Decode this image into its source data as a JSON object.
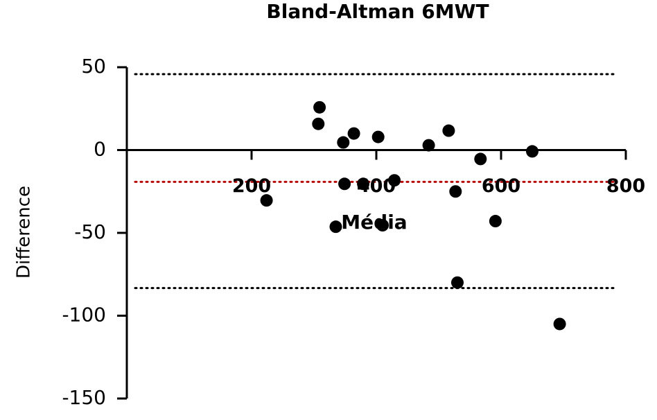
{
  "chart_data": {
    "type": "scatter",
    "title": "Bland-Altman 6MWT",
    "xlabel": "Média",
    "ylabel": "Difference",
    "x": [
      224,
      309,
      307,
      347,
      364,
      349,
      335,
      403,
      410,
      379,
      429,
      484,
      516,
      527,
      530,
      567,
      591,
      650,
      694
    ],
    "series": [
      {
        "color": "#000000",
        "values": [
          -30.4,
          25.8,
          15.8,
          4.6,
          10,
          -20.4,
          -46.3,
          7.9,
          -45.4,
          -20.4,
          -18.3,
          2.9,
          11.7,
          -25,
          -80,
          -5.4,
          -42.9,
          -0.8,
          -105
        ]
      }
    ],
    "xlim": [
      0,
      800
    ],
    "xticks": [
      200,
      400,
      600,
      800
    ],
    "ylim": [
      -150,
      50
    ],
    "yticks": [
      -150,
      -100,
      -50,
      0,
      50
    ],
    "reference_lines": [
      {
        "value": 45.8,
        "color": "#000000"
      },
      {
        "value": -19.2,
        "color": "#c00000"
      },
      {
        "value": -83.3,
        "color": "#000000"
      }
    ]
  }
}
